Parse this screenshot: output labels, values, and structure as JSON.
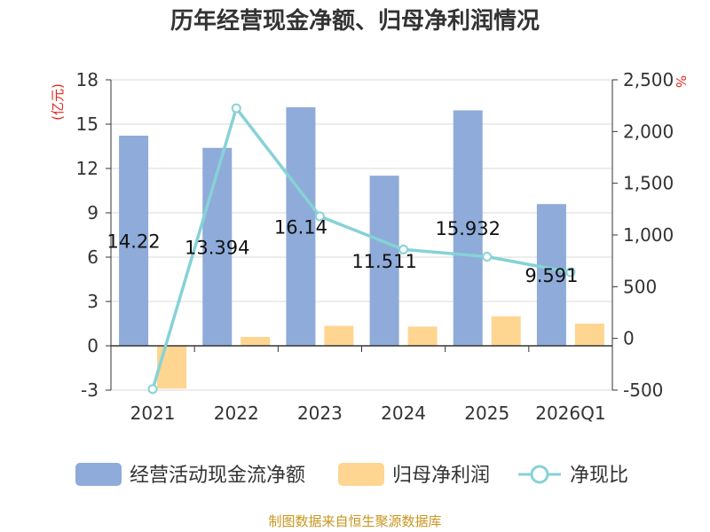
{
  "chart_data": {
    "type": "bar",
    "title": "历年经营现金净额、归母净利润情况",
    "categories": [
      "2021",
      "2022",
      "2023",
      "2024",
      "2025",
      "2026Q1"
    ],
    "series": [
      {
        "name": "经营活动现金流净额",
        "type": "bar",
        "axis": "left",
        "color": "#8eabd9",
        "values": [
          14.22,
          13.394,
          16.14,
          11.511,
          15.932,
          9.591
        ]
      },
      {
        "name": "归母净利润",
        "type": "bar",
        "axis": "left",
        "color": "#fed591",
        "values": [
          -2.9,
          0.6,
          1.35,
          1.3,
          2.0,
          1.5
        ]
      },
      {
        "name": "净现比",
        "type": "line",
        "axis": "right",
        "color": "#86d2d6",
        "values": [
          -490,
          2225,
          1180,
          860,
          790,
          640
        ]
      }
    ],
    "data_labels": [
      "14.22",
      "13.394",
      "16.14",
      "11.511",
      "15.932",
      "9.591"
    ],
    "left_axis": {
      "unit": "(亿元)",
      "ylim": [
        -3,
        18
      ],
      "ticks": [
        "-3",
        "0",
        "3",
        "6",
        "9",
        "12",
        "15",
        "18"
      ],
      "tick_values": [
        -3,
        0,
        3,
        6,
        9,
        12,
        15,
        18
      ]
    },
    "right_axis": {
      "unit": "%",
      "ylim": [
        -500,
        2500
      ],
      "ticks": [
        "-500",
        "0",
        "500",
        "1,000",
        "1,500",
        "2,000",
        "2,500"
      ],
      "tick_values": [
        -500,
        0,
        500,
        1000,
        1500,
        2000,
        2500
      ]
    },
    "grid": true,
    "legend_position": "bottom"
  },
  "source_note": "制图数据来自恒生聚源数据库"
}
